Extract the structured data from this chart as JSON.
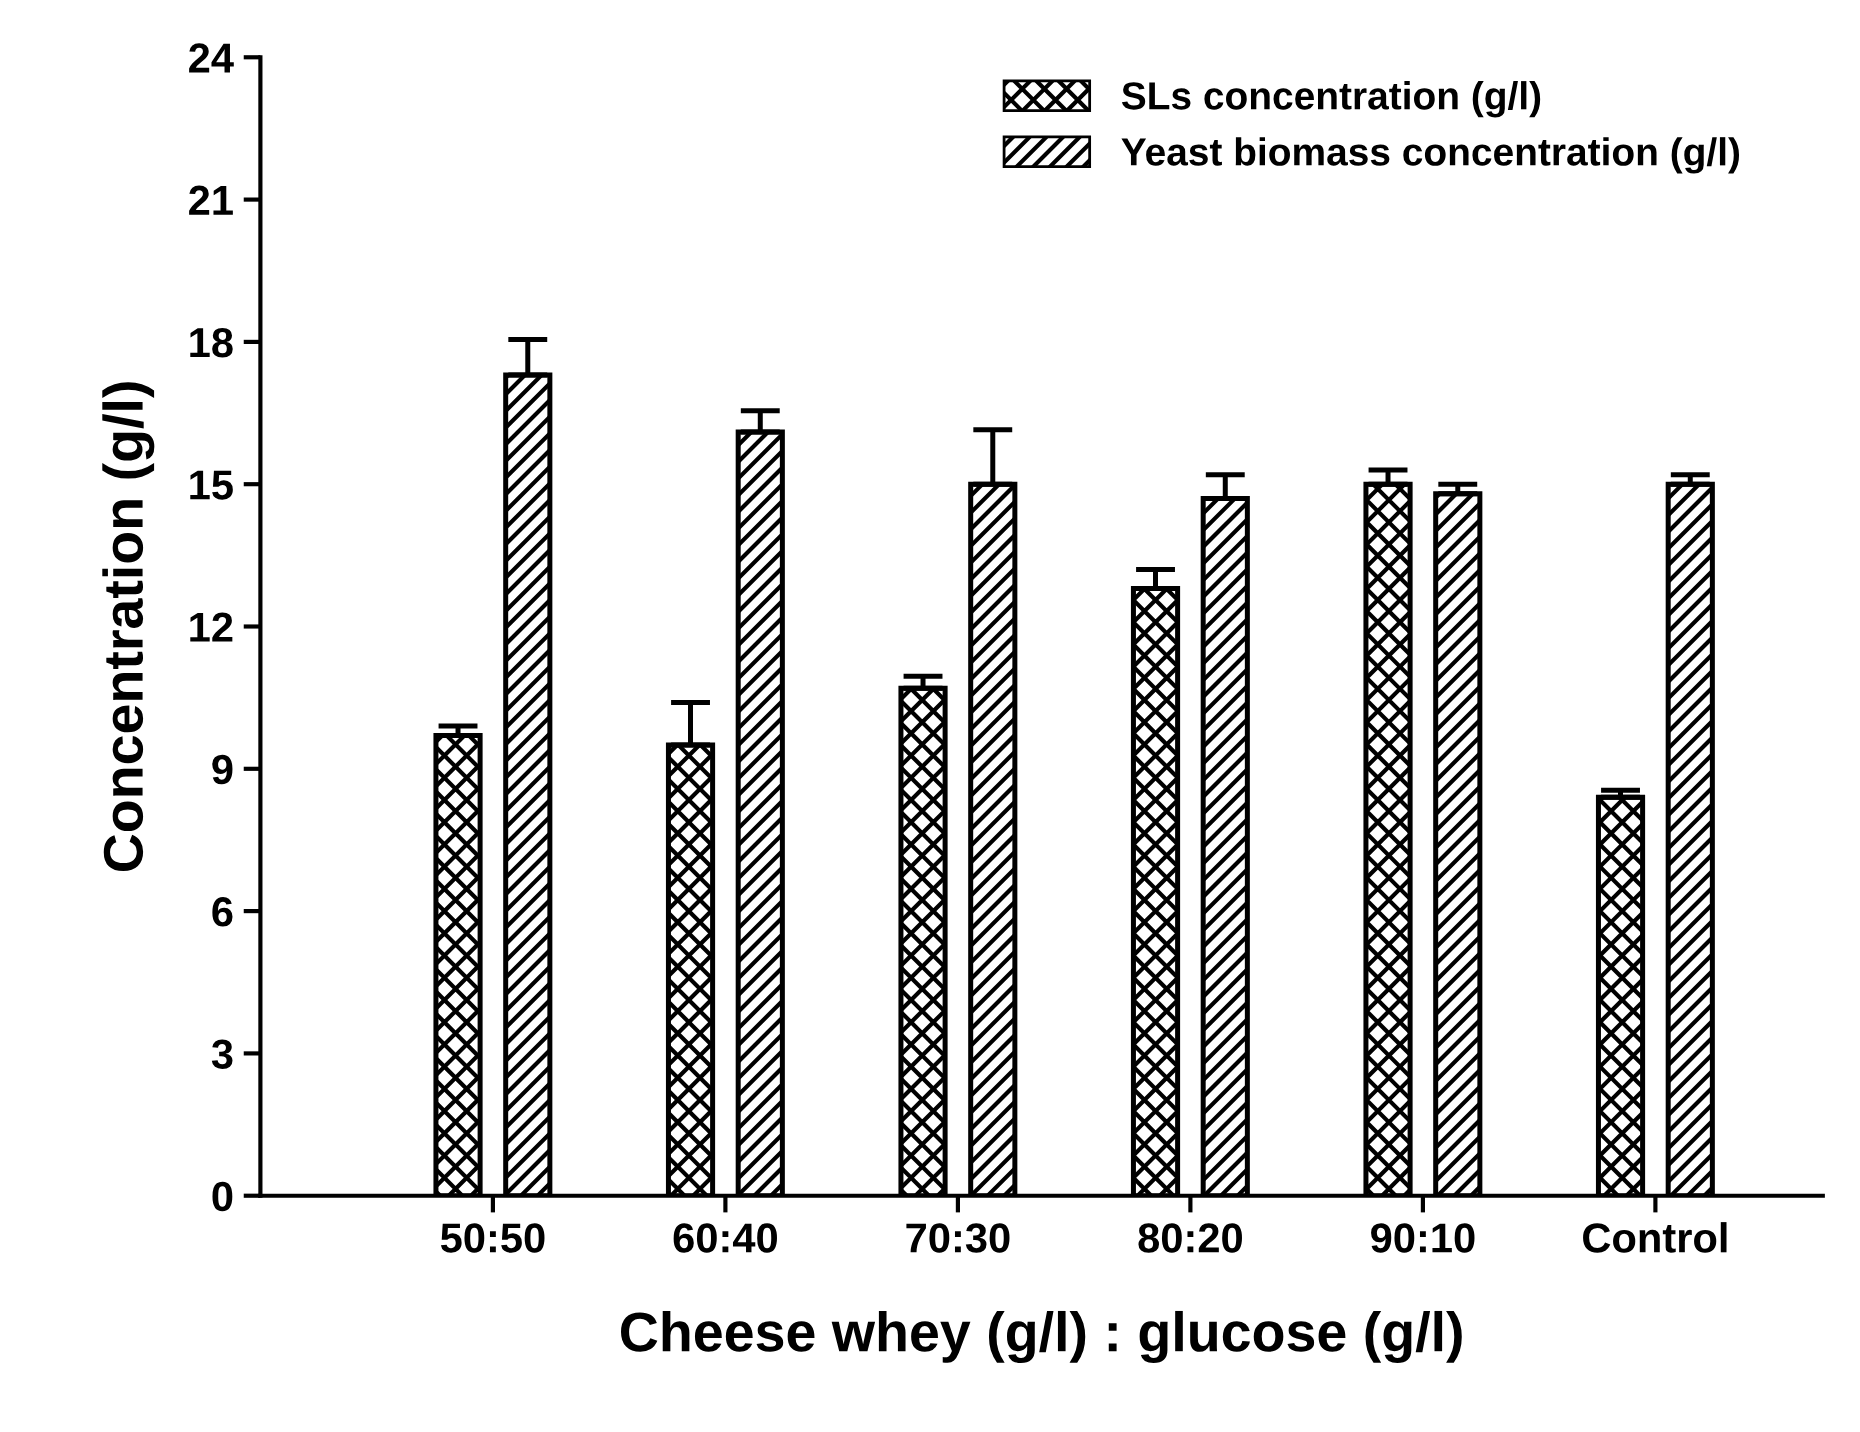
{
  "chart_data": {
    "type": "bar",
    "xlabel": "Cheese whey (g/l) : glucose (g/l)",
    "ylabel": "Concentration (g/l)",
    "categories": [
      "50:50",
      "60:40",
      "70:30",
      "80:20",
      "90:10",
      "Control"
    ],
    "series": [
      {
        "name": "SLs concentration (g/l)",
        "color": "#000000",
        "values": [
          9.7,
          9.5,
          10.7,
          12.8,
          15.0,
          8.4
        ],
        "errors": [
          [
            9.7,
            9.9
          ],
          [
            9.5,
            10.4
          ],
          [
            10.7,
            10.95
          ],
          [
            12.8,
            13.2
          ],
          [
            15.0,
            15.3
          ],
          [
            8.4,
            8.55
          ]
        ]
      },
      {
        "name": "Yeast biomass concentration (g/l)",
        "color": "#000000",
        "values": [
          17.3,
          16.1,
          15.0,
          14.7,
          14.8,
          15.0
        ],
        "errors": [
          [
            17.3,
            18.05
          ],
          [
            16.1,
            16.55
          ],
          [
            15.0,
            16.15
          ],
          [
            14.7,
            15.2
          ],
          [
            14.8,
            15.0
          ],
          [
            15.0,
            15.2
          ]
        ]
      }
    ],
    "ylim": [
      0,
      24
    ],
    "yticks": [
      0,
      3,
      6,
      9,
      12,
      15,
      18,
      21,
      24
    ],
    "legend": "top right",
    "grid": false
  }
}
